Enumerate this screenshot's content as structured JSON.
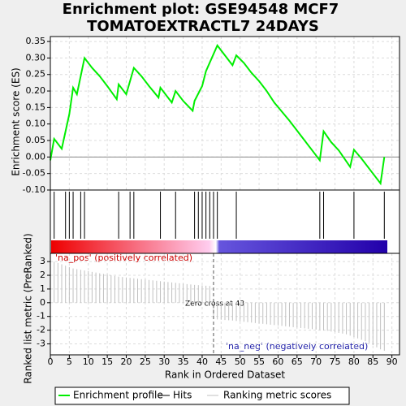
{
  "chart_data": {
    "type": "gsea",
    "title": "Enrichment plot: GSE94548 MCF7",
    "subtitle": "TOMATOEXTRACTL7 24DAYS",
    "y_label": "Enrichment score (ES)",
    "metric_label": "Ranked list metric (PreRanked)",
    "x_label": "Rank in Ordered Dataset",
    "pos_label": "'na_pos' (positively correlated)",
    "neg_label": "'na_neg' (negatively correlated)",
    "zero_cross_label": "Zero cross at 43",
    "zero_cross": 43,
    "grid": true,
    "xlim": [
      0,
      92
    ],
    "xticks": [
      0,
      5,
      10,
      15,
      20,
      25,
      30,
      35,
      40,
      45,
      50,
      55,
      60,
      65,
      70,
      75,
      80,
      85,
      90
    ],
    "ylim": [
      -0.1,
      0.365
    ],
    "yticks": [
      0.35,
      {
        "value": 0.3,
        "label": "0.30"
      },
      0.25,
      {
        "value": 0.2,
        "label": "0.20"
      },
      0.15,
      {
        "value": 0.1,
        "label": "0.10"
      },
      0.05,
      {
        "value": 0,
        "label": "0.00"
      },
      -0.05,
      {
        "value": -0.1,
        "label": "-0.10"
      }
    ],
    "metric_ylim": [
      -3.8,
      3.6
    ],
    "metric_yticks": [
      3,
      2,
      1,
      0,
      -1,
      -2,
      -3
    ],
    "es": {
      "name": "Enrichment profile",
      "color": "#00ee00",
      "x": [
        0,
        1,
        3,
        5,
        6,
        7,
        9,
        11,
        13,
        15,
        17.5,
        18,
        20,
        22,
        24,
        26,
        28.5,
        29,
        32,
        33,
        35,
        37.5,
        38,
        40,
        41,
        44,
        48,
        49,
        51,
        53,
        55,
        57,
        59,
        63,
        67,
        70,
        71,
        72,
        74,
        76,
        79,
        80,
        82,
        85,
        87,
        88
      ],
      "values": [
        -0.01,
        0.055,
        0.025,
        0.13,
        0.21,
        0.19,
        0.3,
        0.27,
        0.245,
        0.215,
        0.175,
        0.22,
        0.19,
        0.27,
        0.245,
        0.215,
        0.18,
        0.21,
        0.165,
        0.2,
        0.17,
        0.14,
        0.17,
        0.215,
        0.26,
        0.338,
        0.278,
        0.308,
        0.285,
        0.255,
        0.23,
        0.2,
        0.165,
        0.11,
        0.05,
        0.005,
        -0.01,
        0.078,
        0.045,
        0.02,
        -0.03,
        0.022,
        -0.005,
        -0.05,
        -0.08,
        0.0
      ]
    },
    "hits": {
      "name": "Hits",
      "color": "#000000",
      "x": [
        1,
        4,
        5,
        6,
        8,
        9,
        18,
        21,
        22,
        29,
        33,
        38,
        39,
        40,
        41,
        42,
        43,
        44,
        49,
        71,
        72,
        80,
        88
      ]
    },
    "metric": {
      "name": "Ranking metric scores",
      "color": "#c0c0c0",
      "values": [
        3.3,
        3.0,
        2.9,
        2.8,
        2.7,
        2.6,
        2.5,
        2.45,
        2.4,
        2.35,
        2.3,
        2.25,
        2.2,
        2.15,
        2.1,
        2.05,
        2.0,
        1.95,
        1.9,
        1.87,
        1.84,
        1.81,
        1.78,
        1.75,
        1.72,
        1.69,
        1.66,
        1.63,
        1.6,
        1.57,
        1.54,
        1.51,
        1.48,
        1.45,
        1.42,
        1.39,
        1.36,
        1.33,
        1.3,
        1.28,
        1.26,
        1.24,
        1.22,
        -1.2,
        -1.22,
        -1.24,
        -1.26,
        -1.28,
        -1.3,
        -1.33,
        -1.36,
        -1.39,
        -1.42,
        -1.45,
        -1.48,
        -1.51,
        -1.54,
        -1.57,
        -1.6,
        -1.63,
        -1.66,
        -1.69,
        -1.72,
        -1.75,
        -1.78,
        -1.81,
        -1.84,
        -1.87,
        -1.9,
        -1.93,
        -1.96,
        -1.99,
        -2.02,
        -2.05,
        -2.1,
        -2.15,
        -2.2,
        -2.25,
        -2.3,
        -2.4,
        -2.5,
        -2.6,
        -2.7,
        -2.8,
        -2.95,
        -3.1,
        -3.25,
        -3.4,
        -3.5
      ]
    }
  }
}
